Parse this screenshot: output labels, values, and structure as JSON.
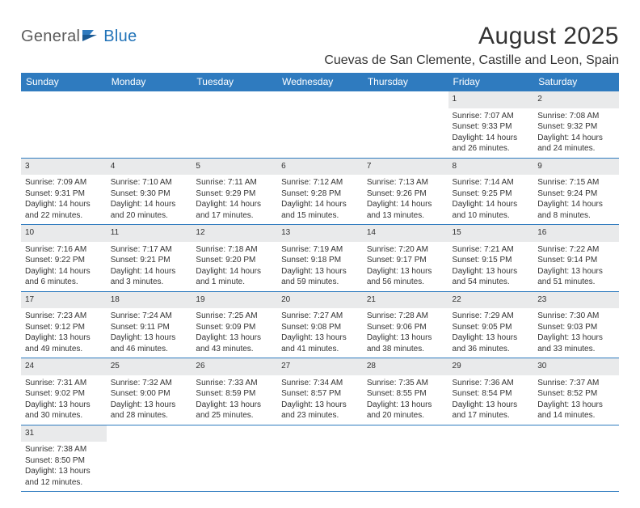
{
  "logo": {
    "part1": "General",
    "part2": "Blue"
  },
  "title": "August 2025",
  "location": "Cuevas de San Clemente, Castille and Leon, Spain",
  "colors": {
    "header_bg": "#2f7bbf",
    "header_text": "#ffffff",
    "daynum_bg": "#e9eaeb",
    "text": "#333333",
    "logo_gray": "#5c5c5c",
    "logo_blue": "#2173b8",
    "page_bg": "#ffffff"
  },
  "typography": {
    "title_fontsize": 30,
    "location_fontsize": 16,
    "weekday_fontsize": 12,
    "daynum_fontsize": 11,
    "detail_fontsize": 10
  },
  "weekdays": [
    "Sunday",
    "Monday",
    "Tuesday",
    "Wednesday",
    "Thursday",
    "Friday",
    "Saturday"
  ],
  "weeks": [
    [
      null,
      null,
      null,
      null,
      null,
      {
        "n": "1",
        "sunrise": "Sunrise: 7:07 AM",
        "sunset": "Sunset: 9:33 PM",
        "day1": "Daylight: 14 hours",
        "day2": "and 26 minutes."
      },
      {
        "n": "2",
        "sunrise": "Sunrise: 7:08 AM",
        "sunset": "Sunset: 9:32 PM",
        "day1": "Daylight: 14 hours",
        "day2": "and 24 minutes."
      }
    ],
    [
      {
        "n": "3",
        "sunrise": "Sunrise: 7:09 AM",
        "sunset": "Sunset: 9:31 PM",
        "day1": "Daylight: 14 hours",
        "day2": "and 22 minutes."
      },
      {
        "n": "4",
        "sunrise": "Sunrise: 7:10 AM",
        "sunset": "Sunset: 9:30 PM",
        "day1": "Daylight: 14 hours",
        "day2": "and 20 minutes."
      },
      {
        "n": "5",
        "sunrise": "Sunrise: 7:11 AM",
        "sunset": "Sunset: 9:29 PM",
        "day1": "Daylight: 14 hours",
        "day2": "and 17 minutes."
      },
      {
        "n": "6",
        "sunrise": "Sunrise: 7:12 AM",
        "sunset": "Sunset: 9:28 PM",
        "day1": "Daylight: 14 hours",
        "day2": "and 15 minutes."
      },
      {
        "n": "7",
        "sunrise": "Sunrise: 7:13 AM",
        "sunset": "Sunset: 9:26 PM",
        "day1": "Daylight: 14 hours",
        "day2": "and 13 minutes."
      },
      {
        "n": "8",
        "sunrise": "Sunrise: 7:14 AM",
        "sunset": "Sunset: 9:25 PM",
        "day1": "Daylight: 14 hours",
        "day2": "and 10 minutes."
      },
      {
        "n": "9",
        "sunrise": "Sunrise: 7:15 AM",
        "sunset": "Sunset: 9:24 PM",
        "day1": "Daylight: 14 hours",
        "day2": "and 8 minutes."
      }
    ],
    [
      {
        "n": "10",
        "sunrise": "Sunrise: 7:16 AM",
        "sunset": "Sunset: 9:22 PM",
        "day1": "Daylight: 14 hours",
        "day2": "and 6 minutes."
      },
      {
        "n": "11",
        "sunrise": "Sunrise: 7:17 AM",
        "sunset": "Sunset: 9:21 PM",
        "day1": "Daylight: 14 hours",
        "day2": "and 3 minutes."
      },
      {
        "n": "12",
        "sunrise": "Sunrise: 7:18 AM",
        "sunset": "Sunset: 9:20 PM",
        "day1": "Daylight: 14 hours",
        "day2": "and 1 minute."
      },
      {
        "n": "13",
        "sunrise": "Sunrise: 7:19 AM",
        "sunset": "Sunset: 9:18 PM",
        "day1": "Daylight: 13 hours",
        "day2": "and 59 minutes."
      },
      {
        "n": "14",
        "sunrise": "Sunrise: 7:20 AM",
        "sunset": "Sunset: 9:17 PM",
        "day1": "Daylight: 13 hours",
        "day2": "and 56 minutes."
      },
      {
        "n": "15",
        "sunrise": "Sunrise: 7:21 AM",
        "sunset": "Sunset: 9:15 PM",
        "day1": "Daylight: 13 hours",
        "day2": "and 54 minutes."
      },
      {
        "n": "16",
        "sunrise": "Sunrise: 7:22 AM",
        "sunset": "Sunset: 9:14 PM",
        "day1": "Daylight: 13 hours",
        "day2": "and 51 minutes."
      }
    ],
    [
      {
        "n": "17",
        "sunrise": "Sunrise: 7:23 AM",
        "sunset": "Sunset: 9:12 PM",
        "day1": "Daylight: 13 hours",
        "day2": "and 49 minutes."
      },
      {
        "n": "18",
        "sunrise": "Sunrise: 7:24 AM",
        "sunset": "Sunset: 9:11 PM",
        "day1": "Daylight: 13 hours",
        "day2": "and 46 minutes."
      },
      {
        "n": "19",
        "sunrise": "Sunrise: 7:25 AM",
        "sunset": "Sunset: 9:09 PM",
        "day1": "Daylight: 13 hours",
        "day2": "and 43 minutes."
      },
      {
        "n": "20",
        "sunrise": "Sunrise: 7:27 AM",
        "sunset": "Sunset: 9:08 PM",
        "day1": "Daylight: 13 hours",
        "day2": "and 41 minutes."
      },
      {
        "n": "21",
        "sunrise": "Sunrise: 7:28 AM",
        "sunset": "Sunset: 9:06 PM",
        "day1": "Daylight: 13 hours",
        "day2": "and 38 minutes."
      },
      {
        "n": "22",
        "sunrise": "Sunrise: 7:29 AM",
        "sunset": "Sunset: 9:05 PM",
        "day1": "Daylight: 13 hours",
        "day2": "and 36 minutes."
      },
      {
        "n": "23",
        "sunrise": "Sunrise: 7:30 AM",
        "sunset": "Sunset: 9:03 PM",
        "day1": "Daylight: 13 hours",
        "day2": "and 33 minutes."
      }
    ],
    [
      {
        "n": "24",
        "sunrise": "Sunrise: 7:31 AM",
        "sunset": "Sunset: 9:02 PM",
        "day1": "Daylight: 13 hours",
        "day2": "and 30 minutes."
      },
      {
        "n": "25",
        "sunrise": "Sunrise: 7:32 AM",
        "sunset": "Sunset: 9:00 PM",
        "day1": "Daylight: 13 hours",
        "day2": "and 28 minutes."
      },
      {
        "n": "26",
        "sunrise": "Sunrise: 7:33 AM",
        "sunset": "Sunset: 8:59 PM",
        "day1": "Daylight: 13 hours",
        "day2": "and 25 minutes."
      },
      {
        "n": "27",
        "sunrise": "Sunrise: 7:34 AM",
        "sunset": "Sunset: 8:57 PM",
        "day1": "Daylight: 13 hours",
        "day2": "and 23 minutes."
      },
      {
        "n": "28",
        "sunrise": "Sunrise: 7:35 AM",
        "sunset": "Sunset: 8:55 PM",
        "day1": "Daylight: 13 hours",
        "day2": "and 20 minutes."
      },
      {
        "n": "29",
        "sunrise": "Sunrise: 7:36 AM",
        "sunset": "Sunset: 8:54 PM",
        "day1": "Daylight: 13 hours",
        "day2": "and 17 minutes."
      },
      {
        "n": "30",
        "sunrise": "Sunrise: 7:37 AM",
        "sunset": "Sunset: 8:52 PM",
        "day1": "Daylight: 13 hours",
        "day2": "and 14 minutes."
      }
    ],
    [
      {
        "n": "31",
        "sunrise": "Sunrise: 7:38 AM",
        "sunset": "Sunset: 8:50 PM",
        "day1": "Daylight: 13 hours",
        "day2": "and 12 minutes."
      },
      null,
      null,
      null,
      null,
      null,
      null
    ]
  ]
}
